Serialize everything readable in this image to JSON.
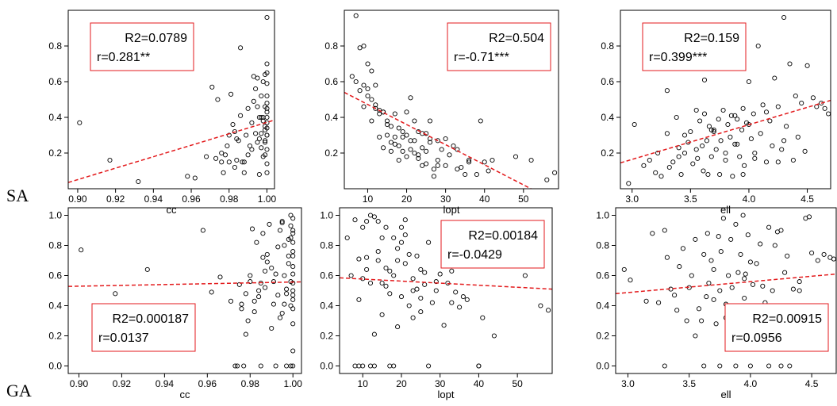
{
  "row_labels": [
    "SA",
    "GA"
  ],
  "style": {
    "point_color": "#000000",
    "fit_color": "#e31a1c",
    "box_color": "#e31a1c"
  },
  "chart_data": [
    {
      "type": "scatter",
      "row": "SA",
      "xlabel": "cc",
      "ylabel": "",
      "xlim": [
        0.895,
        1.004
      ],
      "ylim": [
        0.0,
        1.0
      ],
      "xticks": [
        0.9,
        0.92,
        0.94,
        0.96,
        0.98,
        1.0
      ],
      "xtick_labels": [
        "0.90",
        "0.92",
        "0.94",
        "0.96",
        "0.98",
        "1.00"
      ],
      "yticks": [
        0.2,
        0.4,
        0.6,
        0.8
      ],
      "ytick_labels": [
        "0.2",
        "0.4",
        "0.6",
        "0.8"
      ],
      "fit": {
        "x": [
          0.895,
          1.004
        ],
        "y": [
          0.035,
          0.385
        ]
      },
      "stats": {
        "r2": "R2=0.0789",
        "r": "r=0.281**"
      },
      "stats_box": "top-left",
      "x": [
        0.901,
        0.917,
        0.932,
        0.958,
        0.962,
        0.968,
        0.971,
        0.973,
        0.974,
        0.976,
        0.977,
        0.978,
        0.979,
        0.98,
        0.981,
        0.982,
        0.983,
        0.984,
        0.985,
        0.986,
        0.987,
        0.988,
        0.989,
        0.99,
        0.991,
        0.992,
        0.993,
        0.994,
        0.995,
        0.995,
        0.996,
        0.996,
        0.997,
        0.997,
        0.998,
        0.998,
        0.998,
        0.999,
        0.999,
        0.999,
        0.999,
        1.0,
        1.0,
        1.0,
        1.0,
        1.0,
        1.0,
        1.0,
        1.0,
        1.0,
        1.0,
        1.0,
        0.976,
        0.98,
        0.984,
        0.988,
        0.992,
        0.994,
        0.996,
        0.997,
        0.998,
        0.999,
        0.999,
        1.0,
        1.0,
        1.0,
        1.0,
        0.983,
        0.986,
        0.99,
        0.993,
        0.995,
        0.997,
        0.999,
        1.0
      ],
      "y": [
        0.37,
        0.16,
        0.04,
        0.07,
        0.06,
        0.18,
        0.57,
        0.17,
        0.5,
        0.15,
        0.09,
        0.19,
        0.24,
        0.15,
        0.53,
        0.36,
        0.12,
        0.16,
        0.27,
        0.79,
        0.15,
        0.09,
        0.3,
        0.45,
        0.24,
        0.37,
        0.49,
        0.56,
        0.62,
        0.26,
        0.4,
        0.08,
        0.52,
        0.31,
        0.6,
        0.38,
        0.18,
        0.26,
        0.46,
        0.64,
        0.35,
        0.96,
        0.7,
        0.65,
        0.59,
        0.52,
        0.48,
        0.43,
        0.4,
        0.34,
        0.3,
        0.22,
        0.2,
        0.3,
        0.28,
        0.15,
        0.22,
        0.31,
        0.28,
        0.23,
        0.4,
        0.19,
        0.33,
        0.3,
        0.14,
        0.09,
        0.37,
        0.32,
        0.41,
        0.19,
        0.63,
        0.46,
        0.4,
        0.27,
        0.45
      ]
    },
    {
      "type": "scatter",
      "row": "SA",
      "xlabel": "lopt",
      "ylabel": "",
      "xlim": [
        4,
        59
      ],
      "ylim": [
        0.0,
        1.0
      ],
      "xticks": [
        10,
        20,
        30,
        40,
        50
      ],
      "xtick_labels": [
        "10",
        "20",
        "30",
        "40",
        "50"
      ],
      "yticks": [
        0.2,
        0.4,
        0.6,
        0.8
      ],
      "ytick_labels": [
        "0.2",
        "0.4",
        "0.6",
        "0.8"
      ],
      "fit": {
        "x": [
          4,
          59
        ],
        "y": [
          0.54,
          -0.08
        ]
      },
      "stats": {
        "r2": "R2=0.504",
        "r": "r=-0.71***"
      },
      "stats_box": "top-right",
      "x": [
        6,
        7,
        8,
        8,
        9,
        9,
        10,
        10,
        11,
        11,
        12,
        12,
        13,
        13,
        14,
        14,
        15,
        15,
        16,
        16,
        17,
        17,
        18,
        18,
        19,
        19,
        20,
        20,
        21,
        21,
        22,
        22,
        23,
        23,
        24,
        24,
        25,
        25,
        26,
        26,
        27,
        28,
        28,
        29,
        30,
        31,
        32,
        33,
        34,
        35,
        36,
        38,
        39,
        40,
        41,
        42,
        48,
        52,
        56,
        58,
        7,
        9,
        11,
        13,
        15,
        17,
        19,
        21,
        23,
        25,
        27,
        30,
        33,
        36,
        10,
        12,
        14,
        16,
        18,
        20,
        22,
        24,
        26,
        28
      ],
      "y": [
        0.63,
        0.97,
        0.79,
        0.55,
        0.8,
        0.46,
        0.7,
        0.52,
        0.66,
        0.38,
        0.45,
        0.58,
        0.42,
        0.29,
        0.43,
        0.23,
        0.3,
        0.38,
        0.26,
        0.21,
        0.25,
        0.42,
        0.34,
        0.16,
        0.21,
        0.29,
        0.43,
        0.3,
        0.51,
        0.22,
        0.27,
        0.38,
        0.17,
        0.32,
        0.13,
        0.23,
        0.31,
        0.14,
        0.28,
        0.38,
        0.11,
        0.16,
        0.27,
        0.22,
        0.28,
        0.19,
        0.24,
        0.22,
        0.12,
        0.08,
        0.15,
        0.08,
        0.38,
        0.15,
        0.1,
        0.16,
        0.18,
        0.16,
        0.05,
        0.09,
        0.6,
        0.58,
        0.5,
        0.44,
        0.36,
        0.29,
        0.32,
        0.27,
        0.19,
        0.21,
        0.07,
        0.13,
        0.11,
        0.16,
        0.56,
        0.47,
        0.43,
        0.35,
        0.24,
        0.18,
        0.2,
        0.31,
        0.26,
        0.13
      ]
    },
    {
      "type": "scatter",
      "row": "SA",
      "xlabel": "ell",
      "ylabel": "",
      "xlim": [
        2.9,
        4.7
      ],
      "ylim": [
        0.0,
        1.0
      ],
      "xticks": [
        3.0,
        3.5,
        4.0,
        4.5
      ],
      "xtick_labels": [
        "3.0",
        "3.5",
        "4.0",
        "4.5"
      ],
      "yticks": [
        0.2,
        0.4,
        0.6,
        0.8
      ],
      "ytick_labels": [
        "0.2",
        "0.4",
        "0.6",
        "0.8"
      ],
      "fit": {
        "x": [
          2.9,
          4.7
        ],
        "y": [
          0.145,
          0.495
        ]
      },
      "stats": {
        "r2": "R2=0.159",
        "r": "r=0.399***"
      },
      "stats_box": "top-left",
      "x": [
        2.97,
        3.02,
        3.1,
        3.15,
        3.2,
        3.22,
        3.25,
        3.3,
        3.32,
        3.35,
        3.38,
        3.4,
        3.42,
        3.45,
        3.48,
        3.5,
        3.52,
        3.55,
        3.56,
        3.58,
        3.6,
        3.61,
        3.62,
        3.64,
        3.65,
        3.66,
        3.68,
        3.7,
        3.72,
        3.74,
        3.75,
        3.76,
        3.78,
        3.8,
        3.82,
        3.84,
        3.85,
        3.86,
        3.88,
        3.9,
        3.92,
        3.94,
        3.95,
        3.96,
        3.98,
        4.0,
        4.02,
        4.04,
        4.05,
        4.08,
        4.1,
        4.12,
        4.15,
        4.18,
        4.2,
        4.22,
        4.25,
        4.28,
        4.3,
        4.32,
        4.35,
        4.38,
        4.4,
        4.42,
        4.45,
        4.48,
        4.5,
        4.55,
        4.58,
        4.62,
        4.65,
        4.68,
        3.3,
        3.45,
        3.62,
        3.7,
        3.8,
        3.9,
        4.0,
        4.15,
        4.3,
        3.55,
        3.68,
        3.88,
        4.05,
        4.25,
        3.4,
        3.95
      ],
      "y": [
        0.03,
        0.36,
        0.13,
        0.16,
        0.09,
        0.2,
        0.07,
        0.31,
        0.12,
        0.15,
        0.4,
        0.18,
        0.08,
        0.2,
        0.26,
        0.32,
        0.14,
        0.44,
        0.17,
        0.38,
        0.24,
        0.1,
        0.42,
        0.27,
        0.08,
        0.35,
        0.18,
        0.32,
        0.22,
        0.39,
        0.08,
        0.27,
        0.44,
        0.16,
        0.36,
        0.29,
        0.41,
        0.07,
        0.25,
        0.39,
        0.18,
        0.33,
        0.45,
        0.13,
        0.37,
        0.6,
        0.28,
        0.42,
        0.2,
        0.8,
        0.31,
        0.47,
        0.15,
        0.38,
        0.24,
        0.62,
        0.46,
        0.22,
        0.96,
        0.35,
        0.7,
        0.16,
        0.52,
        0.29,
        0.48,
        0.21,
        0.69,
        0.51,
        0.46,
        0.48,
        0.45,
        0.42,
        0.55,
        0.3,
        0.61,
        0.33,
        0.2,
        0.25,
        0.36,
        0.43,
        0.27,
        0.22,
        0.33,
        0.41,
        0.17,
        0.15,
        0.23,
        0.08
      ]
    },
    {
      "type": "scatter",
      "row": "GA",
      "xlabel": "cc",
      "ylabel": "",
      "xlim": [
        0.895,
        1.004
      ],
      "ylim": [
        -0.05,
        1.05
      ],
      "xticks": [
        0.9,
        0.92,
        0.94,
        0.96,
        0.98,
        1.0
      ],
      "xtick_labels": [
        "0.90",
        "0.92",
        "0.94",
        "0.96",
        "0.98",
        "1.00"
      ],
      "yticks": [
        0.0,
        0.2,
        0.4,
        0.6,
        0.8,
        1.0
      ],
      "ytick_labels": [
        "0.0",
        "0.2",
        "0.4",
        "0.6",
        "0.8",
        "1.0"
      ],
      "fit": {
        "x": [
          0.895,
          1.004
        ],
        "y": [
          0.528,
          0.558
        ]
      },
      "stats": {
        "r2": "R2=0.000187",
        "r": "r=0.0137"
      },
      "stats_box": "bottom-left",
      "x": [
        0.901,
        0.917,
        0.932,
        0.958,
        0.962,
        0.966,
        0.971,
        0.973,
        0.975,
        0.976,
        0.977,
        0.978,
        0.979,
        0.98,
        0.981,
        0.982,
        0.983,
        0.984,
        0.985,
        0.986,
        0.987,
        0.988,
        0.989,
        0.99,
        0.991,
        0.992,
        0.993,
        0.994,
        0.995,
        0.996,
        0.997,
        0.998,
        0.999,
        1.0,
        1.0,
        1.0,
        1.0,
        1.0,
        1.0,
        1.0,
        1.0,
        0.974,
        0.976,
        0.986,
        0.99,
        0.993,
        0.996,
        0.998,
        0.999,
        0.999,
        1.0,
        1.0,
        0.98,
        0.984,
        0.988,
        0.992,
        0.995,
        0.997,
        0.999,
        1.0,
        1.0,
        1.0,
        0.982,
        0.987,
        0.991,
        0.994,
        0.996,
        0.998,
        0.999,
        1.0,
        1.0,
        0.997,
        0.999,
        0.978,
        1.0,
        0.995,
        0.985
      ],
      "y": [
        0.77,
        0.48,
        0.64,
        0.9,
        0.49,
        0.59,
        0.43,
        0.0,
        0.54,
        0.38,
        0.0,
        0.21,
        0.3,
        0.6,
        0.91,
        0.43,
        0.82,
        0.46,
        0.0,
        0.88,
        0.63,
        0.74,
        0.94,
        0.25,
        0.56,
        0.0,
        0.79,
        0.9,
        0.96,
        0.41,
        0.0,
        0.84,
        1.0,
        0.98,
        0.9,
        0.82,
        0.73,
        0.66,
        0.55,
        0.47,
        0.0,
        0.0,
        0.41,
        0.72,
        0.65,
        0.47,
        0.6,
        0.73,
        0.56,
        0.93,
        0.88,
        0.38,
        0.56,
        0.5,
        0.69,
        0.61,
        0.35,
        0.48,
        0.85,
        0.61,
        0.28,
        0.44,
        0.36,
        0.52,
        0.41,
        0.32,
        0.8,
        0.68,
        0.4,
        0.76,
        0.5,
        0.51,
        0.0,
        0.48,
        0.1,
        0.95,
        0.55
      ]
    },
    {
      "type": "scatter",
      "row": "GA",
      "xlabel": "lopt",
      "ylabel": "",
      "xlim": [
        4,
        59
      ],
      "ylim": [
        -0.05,
        1.05
      ],
      "xticks": [
        10,
        20,
        30,
        40,
        50
      ],
      "xtick_labels": [
        "10",
        "20",
        "30",
        "40",
        "50"
      ],
      "yticks": [
        0.0,
        0.2,
        0.4,
        0.6,
        0.8,
        1.0
      ],
      "ytick_labels": [
        "0.0",
        "0.2",
        "0.4",
        "0.6",
        "0.8",
        "1.0"
      ],
      "fit": {
        "x": [
          4,
          59
        ],
        "y": [
          0.585,
          0.51
        ]
      },
      "stats": {
        "r2": "R2=0.00184",
        "r": "r=-0.0429"
      },
      "stats_box": "top-right",
      "x": [
        6,
        7,
        8,
        9,
        9,
        10,
        10,
        11,
        11,
        12,
        12,
        13,
        13,
        14,
        14,
        15,
        15,
        16,
        16,
        17,
        17,
        18,
        18,
        19,
        19,
        20,
        20,
        21,
        21,
        22,
        22,
        23,
        23,
        24,
        24,
        25,
        25,
        26,
        27,
        28,
        29,
        30,
        31,
        32,
        33,
        34,
        35,
        36,
        38,
        40,
        41,
        44,
        48,
        52,
        56,
        58,
        8,
        9,
        10,
        12,
        13,
        17,
        18,
        27,
        40,
        11,
        15,
        19,
        23,
        25,
        29,
        33,
        37,
        21,
        26,
        14,
        16,
        20
      ],
      "y": [
        0.85,
        0.6,
        0.97,
        0.44,
        0.71,
        0.92,
        0.58,
        0.96,
        0.72,
        1.0,
        0.55,
        0.99,
        0.21,
        0.96,
        0.7,
        0.55,
        0.85,
        0.92,
        0.53,
        0.48,
        0.63,
        0.85,
        0.6,
        0.26,
        0.7,
        0.92,
        0.46,
        0.68,
        0.87,
        0.4,
        0.74,
        0.58,
        0.32,
        0.51,
        0.73,
        0.36,
        0.45,
        0.54,
        0.82,
        0.42,
        0.5,
        0.61,
        0.27,
        0.55,
        0.63,
        0.49,
        0.39,
        0.46,
        0.7,
        0.0,
        0.32,
        0.2,
        0.82,
        0.6,
        0.4,
        0.37,
        0.0,
        0.0,
        0.0,
        0.0,
        0.0,
        0.0,
        0.0,
        0.0,
        0.0,
        0.64,
        0.34,
        0.78,
        0.5,
        0.64,
        0.56,
        0.42,
        0.44,
        0.97,
        0.62,
        0.76,
        0.65,
        0.82
      ]
    },
    {
      "type": "scatter",
      "row": "GA",
      "xlabel": "ell",
      "ylabel": "",
      "xlim": [
        2.9,
        4.7
      ],
      "ylim": [
        -0.05,
        1.05
      ],
      "xticks": [
        3.0,
        3.5,
        4.0,
        4.5
      ],
      "xtick_labels": [
        "3.0",
        "3.5",
        "4.0",
        "4.5"
      ],
      "yticks": [
        0.0,
        0.2,
        0.4,
        0.6,
        0.8,
        1.0
      ],
      "ytick_labels": [
        "0.0",
        "0.2",
        "0.4",
        "0.6",
        "0.8",
        "1.0"
      ],
      "fit": {
        "x": [
          2.9,
          4.7
        ],
        "y": [
          0.48,
          0.61
        ]
      },
      "stats": {
        "r2": "R2=0.00915",
        "r": "r=0.0956"
      },
      "stats_box": "bottom-right",
      "x": [
        2.97,
        3.02,
        3.15,
        3.2,
        3.25,
        3.3,
        3.32,
        3.35,
        3.38,
        3.4,
        3.42,
        3.45,
        3.48,
        3.5,
        3.52,
        3.55,
        3.58,
        3.6,
        3.62,
        3.64,
        3.65,
        3.66,
        3.68,
        3.7,
        3.72,
        3.74,
        3.75,
        3.76,
        3.78,
        3.8,
        3.82,
        3.84,
        3.85,
        3.86,
        3.88,
        3.9,
        3.92,
        3.94,
        3.95,
        3.96,
        3.98,
        4.0,
        4.02,
        4.04,
        4.05,
        4.08,
        4.1,
        4.12,
        4.15,
        4.18,
        4.2,
        4.22,
        4.25,
        4.28,
        4.3,
        4.35,
        4.4,
        4.45,
        4.48,
        4.5,
        4.55,
        4.6,
        4.65,
        4.68,
        3.3,
        3.62,
        3.75,
        3.88,
        4.0,
        4.15,
        4.25,
        4.32,
        3.55,
        3.8,
        4.05,
        4.4,
        3.7,
        3.95
      ],
      "y": [
        0.64,
        0.57,
        0.43,
        0.88,
        0.42,
        0.9,
        0.72,
        0.51,
        0.47,
        0.37,
        0.66,
        0.78,
        0.3,
        0.52,
        0.6,
        0.84,
        0.38,
        0.3,
        0.74,
        0.46,
        0.88,
        0.55,
        0.7,
        0.64,
        0.28,
        0.86,
        0.5,
        0.76,
        0.98,
        0.41,
        0.6,
        0.84,
        0.52,
        0.36,
        0.94,
        0.62,
        0.74,
        1.0,
        0.45,
        0.61,
        0.87,
        0.69,
        0.54,
        0.4,
        0.68,
        0.81,
        0.53,
        0.42,
        0.92,
        0.5,
        0.8,
        0.89,
        0.9,
        0.62,
        0.73,
        0.51,
        0.56,
        0.98,
        0.99,
        0.75,
        0.7,
        0.74,
        0.72,
        0.71,
        0.0,
        0.0,
        0.0,
        0.0,
        0.0,
        0.0,
        0.0,
        0.0,
        0.2,
        0.32,
        0.18,
        0.5,
        0.44,
        0.58
      ]
    }
  ]
}
